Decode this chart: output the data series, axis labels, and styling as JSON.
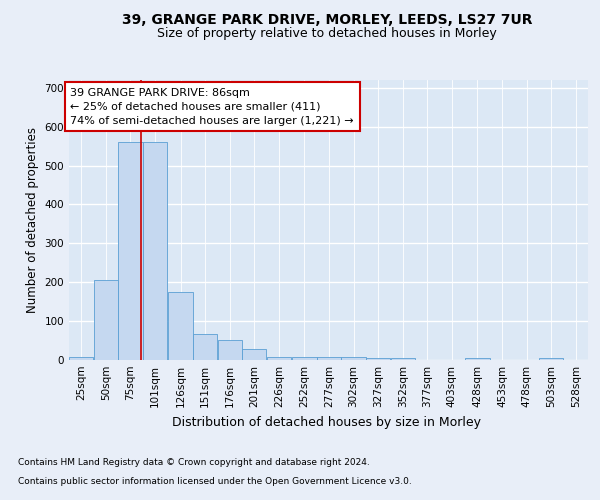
{
  "title1": "39, GRANGE PARK DRIVE, MORLEY, LEEDS, LS27 7UR",
  "title2": "Size of property relative to detached houses in Morley",
  "xlabel": "Distribution of detached houses by size in Morley",
  "ylabel": "Number of detached properties",
  "annotation_line1": "39 GRANGE PARK DRIVE: 86sqm",
  "annotation_line2": "← 25% of detached houses are smaller (411)",
  "annotation_line3": "74% of semi-detached houses are larger (1,221) →",
  "footer1": "Contains HM Land Registry data © Crown copyright and database right 2024.",
  "footer2": "Contains public sector information licensed under the Open Government Licence v3.0.",
  "bar_color": "#c5d8f0",
  "bar_edgecolor": "#5a9fd4",
  "property_line_x": 86,
  "categories": [
    "25sqm",
    "50sqm",
    "75sqm",
    "101sqm",
    "126sqm",
    "151sqm",
    "176sqm",
    "201sqm",
    "226sqm",
    "252sqm",
    "277sqm",
    "302sqm",
    "327sqm",
    "352sqm",
    "377sqm",
    "403sqm",
    "428sqm",
    "453sqm",
    "478sqm",
    "503sqm",
    "528sqm"
  ],
  "bin_width": 25,
  "bin_starts": [
    12.5,
    37.5,
    62.5,
    87.5,
    113.5,
    138.5,
    163.5,
    188.5,
    213.5,
    239.5,
    264.5,
    289.5,
    314.5,
    339.5,
    364.5,
    389.5,
    415.5,
    440.5,
    465.5,
    490.5,
    515.5
  ],
  "values": [
    8,
    205,
    560,
    560,
    175,
    68,
    52,
    28,
    9,
    7,
    9,
    7,
    5,
    5,
    0,
    0,
    5,
    0,
    0,
    4,
    0
  ],
  "ylim": [
    0,
    720
  ],
  "yticks": [
    0,
    100,
    200,
    300,
    400,
    500,
    600,
    700
  ],
  "background_color": "#e8eef8",
  "plot_bg_color": "#dce8f5",
  "grid_color": "#ffffff",
  "annotation_box_facecolor": "#ffffff",
  "annotation_box_edgecolor": "#cc0000",
  "red_line_color": "#cc0000",
  "title1_fontsize": 10,
  "title2_fontsize": 9,
  "tick_fontsize": 7.5,
  "annotation_fontsize": 8,
  "xlabel_fontsize": 9,
  "ylabel_fontsize": 8.5
}
